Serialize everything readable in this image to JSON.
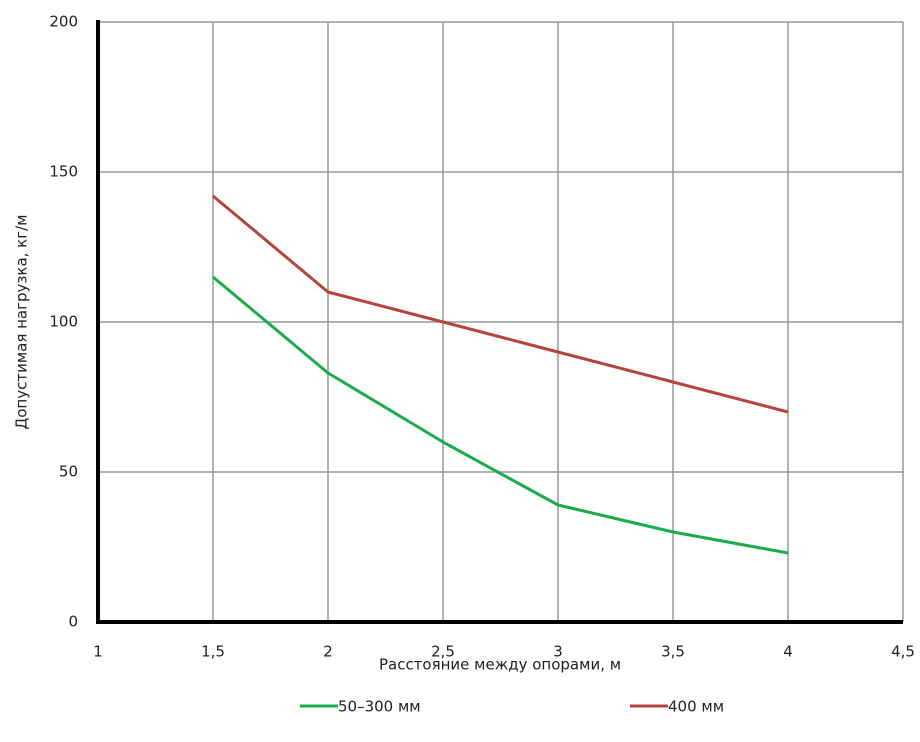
{
  "chart_data": {
    "type": "line",
    "x_label": "Расстояние между опорами, м",
    "y_label": "Допустимая нагрузка, кг/м",
    "x": [
      1.5,
      2,
      2.5,
      3,
      3.5,
      4
    ],
    "series": [
      {
        "name": "50–300 мм",
        "color": "#1aab4a",
        "values": [
          115,
          83,
          60,
          39,
          30,
          23
        ]
      },
      {
        "name": "400 мм",
        "color": "#b5443e",
        "values": [
          142,
          110,
          100,
          90,
          80,
          70
        ]
      }
    ],
    "xlim": [
      1,
      4.5
    ],
    "xticks": [
      1,
      {
        "value": 1.5,
        "label": "1,5"
      },
      2,
      {
        "value": 2.5,
        "label": "2,5"
      },
      3,
      {
        "value": 3.5,
        "label": "3,5"
      },
      4,
      {
        "value": 4.5,
        "label": "4,5"
      }
    ],
    "ylim": [
      0,
      200
    ],
    "yticks": [
      0,
      50,
      100,
      150,
      200
    ],
    "grid": true
  }
}
